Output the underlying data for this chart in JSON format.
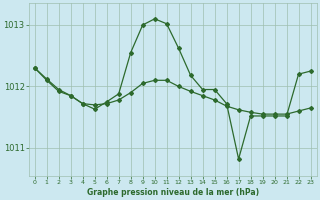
{
  "title": "Graphe pression niveau de la mer (hPa)",
  "bg_color": "#cce8f0",
  "line_color": "#2d6a2d",
  "grid_color": "#9fbfb0",
  "xlim": [
    -0.5,
    23.5
  ],
  "ylim": [
    1010.55,
    1013.35
  ],
  "yticks": [
    1011,
    1012,
    1013
  ],
  "xticks": [
    0,
    1,
    2,
    3,
    4,
    5,
    6,
    7,
    8,
    9,
    10,
    11,
    12,
    13,
    14,
    15,
    16,
    17,
    18,
    19,
    20,
    21,
    22,
    23
  ],
  "series_jagged_x": [
    0,
    1,
    2,
    3,
    4,
    5,
    6,
    7,
    8,
    9,
    10,
    11,
    12,
    13,
    14,
    15,
    16,
    17,
    18,
    19,
    20,
    21,
    22,
    23
  ],
  "series_jagged_y": [
    1012.3,
    1012.1,
    1011.92,
    1011.85,
    1011.72,
    1011.63,
    1011.75,
    1011.88,
    1012.55,
    1013.0,
    1013.1,
    1013.02,
    1012.62,
    1012.18,
    1011.95,
    1011.95,
    1011.72,
    1010.82,
    1011.52,
    1011.52,
    1011.52,
    1011.52,
    1012.2,
    1012.25
  ],
  "series_trend_x": [
    0,
    1,
    2,
    3,
    4,
    5,
    6,
    7,
    8,
    9,
    10,
    11,
    12,
    13,
    14,
    15,
    16,
    17,
    18,
    19,
    20,
    21,
    22,
    23
  ],
  "series_trend_y": [
    1012.3,
    1012.12,
    1011.95,
    1011.85,
    1011.72,
    1011.7,
    1011.72,
    1011.78,
    1011.9,
    1012.05,
    1012.1,
    1012.1,
    1012.0,
    1011.92,
    1011.85,
    1011.78,
    1011.68,
    1011.62,
    1011.58,
    1011.55,
    1011.55,
    1011.55,
    1011.6,
    1011.65
  ]
}
